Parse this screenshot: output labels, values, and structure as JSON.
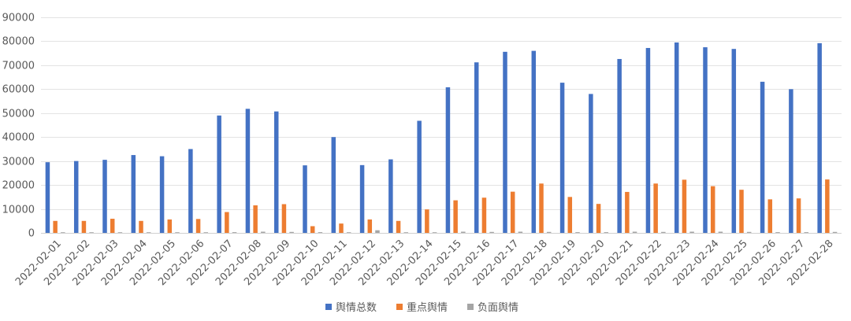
{
  "chart_data": {
    "type": "bar",
    "title": "",
    "xlabel": "",
    "ylabel": "",
    "ylim": [
      0,
      90000
    ],
    "yticks": [
      0,
      10000,
      20000,
      30000,
      40000,
      50000,
      60000,
      70000,
      80000,
      90000
    ],
    "grid": true,
    "legend_position": "bottom",
    "categories": [
      "2022-02-01",
      "2022-02-02",
      "2022-02-03",
      "2022-02-04",
      "2022-02-05",
      "2022-02-06",
      "2022-02-07",
      "2022-02-08",
      "2022-02-09",
      "2022-02-10",
      "2022-02-11",
      "2022-02-12",
      "2022-02-13",
      "2022-02-14",
      "2022-02-15",
      "2022-02-16",
      "2022-02-17",
      "2022-02-18",
      "2022-02-19",
      "2022-02-20",
      "2022-02-21",
      "2022-02-22",
      "2022-02-23",
      "2022-02-24",
      "2022-02-25",
      "2022-02-26",
      "2022-02-27",
      "2022-02-28"
    ],
    "series": [
      {
        "name": "舆情总数",
        "color": "#4472C4",
        "values": [
          29500,
          30000,
          30500,
          32500,
          32000,
          35000,
          49000,
          51800,
          50700,
          28200,
          40000,
          28300,
          30700,
          46800,
          60800,
          71200,
          75600,
          76000,
          62700,
          58000,
          72600,
          77200,
          79500,
          77500,
          76800,
          63100,
          60000,
          79200
        ]
      },
      {
        "name": "重点舆情",
        "color": "#ED7D31",
        "values": [
          5000,
          5000,
          5900,
          5000,
          5600,
          5800,
          8700,
          11500,
          12000,
          2800,
          3900,
          5600,
          5000,
          9800,
          13600,
          14700,
          17200,
          20600,
          15000,
          12100,
          17100,
          20600,
          22200,
          19500,
          18000,
          14000,
          14400,
          22300
        ]
      },
      {
        "name": "负面舆情",
        "color": "#A5A5A5",
        "values": [
          200,
          200,
          200,
          200,
          200,
          200,
          300,
          500,
          400,
          300,
          200,
          1100,
          200,
          200,
          500,
          400,
          500,
          400,
          300,
          300,
          500,
          400,
          500,
          500,
          400,
          300,
          300,
          400
        ]
      }
    ]
  }
}
